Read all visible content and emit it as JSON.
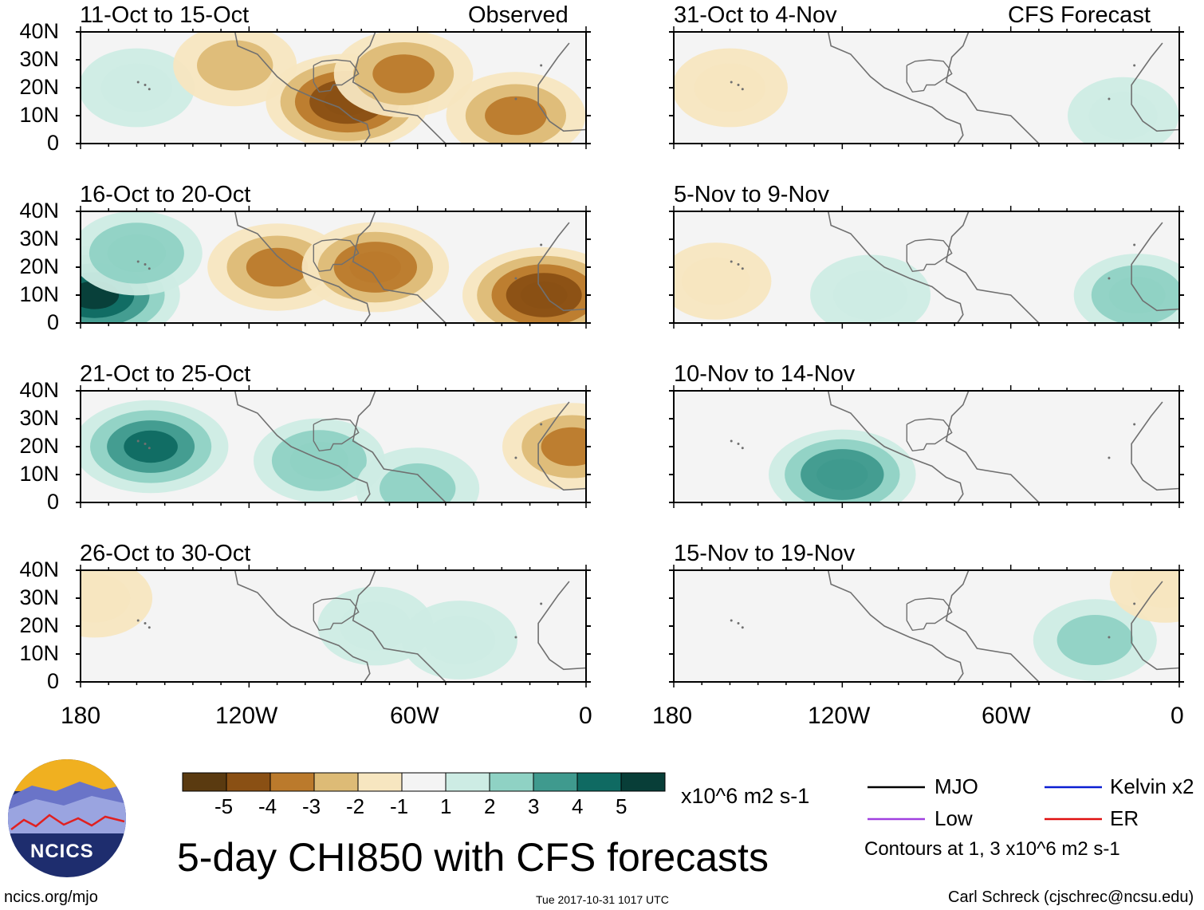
{
  "title": "5-day CHI850 with CFS forecasts",
  "header": {
    "left_label": "Observed",
    "right_label": "CFS Forecast"
  },
  "footer": {
    "url": "ncics.org/mjo",
    "timestamp": "Tue 2017-10-31 1017 UTC",
    "author": "Carl Schreck (cjschrec@ncsu.edu)",
    "logo_text": "NCICS"
  },
  "colorbar": {
    "colors": [
      "#5a3a10",
      "#8a5014",
      "#bb7a2c",
      "#ddbb76",
      "#f7e6c0",
      "#f4f4f4",
      "#cdece4",
      "#8fd2c4",
      "#3f9a8e",
      "#0f6a62",
      "#083e38"
    ],
    "tick_labels": [
      "-5",
      "-4",
      "-3",
      "-2",
      "-1",
      "1",
      "2",
      "3",
      "4",
      "5"
    ],
    "units": "x10^6 m2 s-1"
  },
  "legend": {
    "items": [
      {
        "label": "MJO",
        "color": "#000000"
      },
      {
        "label": "Kelvin x2",
        "color": "#0a1ed2"
      },
      {
        "label": "Low",
        "color": "#a040e0"
      },
      {
        "label": "ER",
        "color": "#e01010"
      }
    ],
    "note": "Contours at 1, 3 x10^6 m2 s-1"
  },
  "chart_data": {
    "type": "heatmap",
    "variable": "CHI850 (5-day mean velocity potential anomaly)",
    "x_axis": {
      "ticks": [
        "180",
        "120W",
        "60W",
        "0"
      ],
      "range": [
        -180,
        0
      ]
    },
    "y_axis": {
      "ticks": [
        "40N",
        "30N",
        "20N",
        "10N",
        "0"
      ],
      "range": [
        0,
        40
      ]
    },
    "panels": [
      {
        "column": "Observed",
        "title": "11-Oct to 15-Oct",
        "blobs": [
          {
            "lon": -160,
            "lat": 20,
            "value": 1.5
          },
          {
            "lon": -125,
            "lat": 28,
            "value": -2
          },
          {
            "lon": -85,
            "lat": 15,
            "value": -4.5
          },
          {
            "lon": -65,
            "lat": 25,
            "value": -3
          },
          {
            "lon": -25,
            "lat": 10,
            "value": -3
          }
        ]
      },
      {
        "column": "Observed",
        "title": "16-Oct to 20-Oct",
        "blobs": [
          {
            "lon": -175,
            "lat": 10,
            "value": 5
          },
          {
            "lon": -160,
            "lat": 25,
            "value": 2.5
          },
          {
            "lon": -110,
            "lat": 20,
            "value": -3
          },
          {
            "lon": -75,
            "lat": 20,
            "value": -3.5
          },
          {
            "lon": -15,
            "lat": 10,
            "value": -4.5
          }
        ]
      },
      {
        "column": "Observed",
        "title": "21-Oct to 25-Oct",
        "blobs": [
          {
            "lon": -155,
            "lat": 20,
            "value": 4
          },
          {
            "lon": -95,
            "lat": 15,
            "value": 2.5
          },
          {
            "lon": -60,
            "lat": 5,
            "value": 2
          },
          {
            "lon": -5,
            "lat": 20,
            "value": -3
          }
        ]
      },
      {
        "column": "Observed",
        "title": "26-Oct to 30-Oct",
        "blobs": [
          {
            "lon": -75,
            "lat": 20,
            "value": 1.5
          },
          {
            "lon": -45,
            "lat": 15,
            "value": 1.5
          },
          {
            "lon": -175,
            "lat": 30,
            "value": -1.5
          }
        ]
      },
      {
        "column": "CFS Forecast",
        "title": "31-Oct to 4-Nov",
        "blobs": [
          {
            "lon": -160,
            "lat": 20,
            "value": -1.5
          },
          {
            "lon": -20,
            "lat": 10,
            "value": 1.2
          }
        ]
      },
      {
        "column": "CFS Forecast",
        "title": "5-Nov to 9-Nov",
        "blobs": [
          {
            "lon": -165,
            "lat": 15,
            "value": -1.2
          },
          {
            "lon": -110,
            "lat": 10,
            "value": 1.8
          },
          {
            "lon": -15,
            "lat": 10,
            "value": 2.2
          }
        ]
      },
      {
        "column": "CFS Forecast",
        "title": "10-Nov to 14-Nov",
        "blobs": [
          {
            "lon": -120,
            "lat": 10,
            "value": 3.5
          }
        ]
      },
      {
        "column": "CFS Forecast",
        "title": "15-Nov to 19-Nov",
        "blobs": [
          {
            "lon": -30,
            "lat": 15,
            "value": 2
          },
          {
            "lon": -5,
            "lat": 35,
            "value": -1.2
          }
        ]
      }
    ]
  }
}
